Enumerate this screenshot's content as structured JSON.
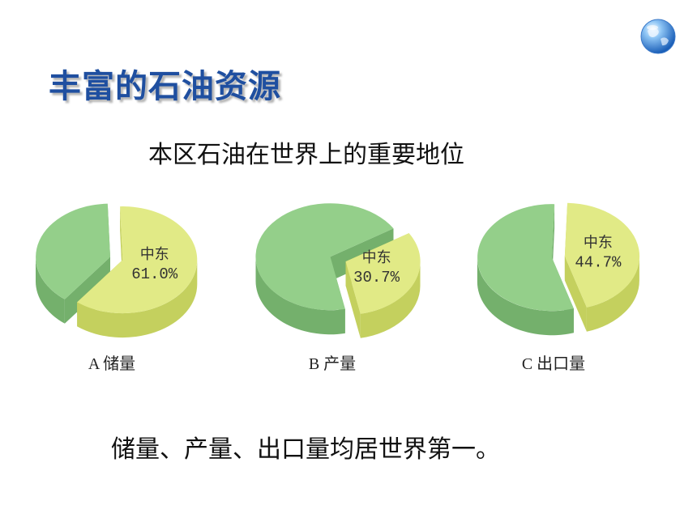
{
  "title": "丰富的石油资源",
  "subtitle": "本区石油在世界上的重要地位",
  "conclusion": "储量、产量、出口量均居世界第一。",
  "globe_icon": "globe-icon",
  "colors": {
    "title": "#1f4fa0",
    "rest_slice_top": "#94cf8a",
    "rest_slice_side": "#74b06c",
    "mideast_slice_top": "#e1ea86",
    "mideast_slice_side": "#c4d05e"
  },
  "chart_data": [
    {
      "type": "pie",
      "caption": "A  储量",
      "slices": [
        {
          "label": "中东",
          "value": 61.0,
          "display": "61.0%"
        },
        {
          "value": 39.0
        }
      ]
    },
    {
      "type": "pie",
      "caption": "B  产量",
      "slices": [
        {
          "label": "中东",
          "value": 30.7,
          "display": "30.7%"
        },
        {
          "value": 69.3
        }
      ]
    },
    {
      "type": "pie",
      "caption": "C  出口量",
      "slices": [
        {
          "label": "中东",
          "value": 44.7,
          "display": "44.7%"
        },
        {
          "value": 55.3
        }
      ]
    }
  ]
}
